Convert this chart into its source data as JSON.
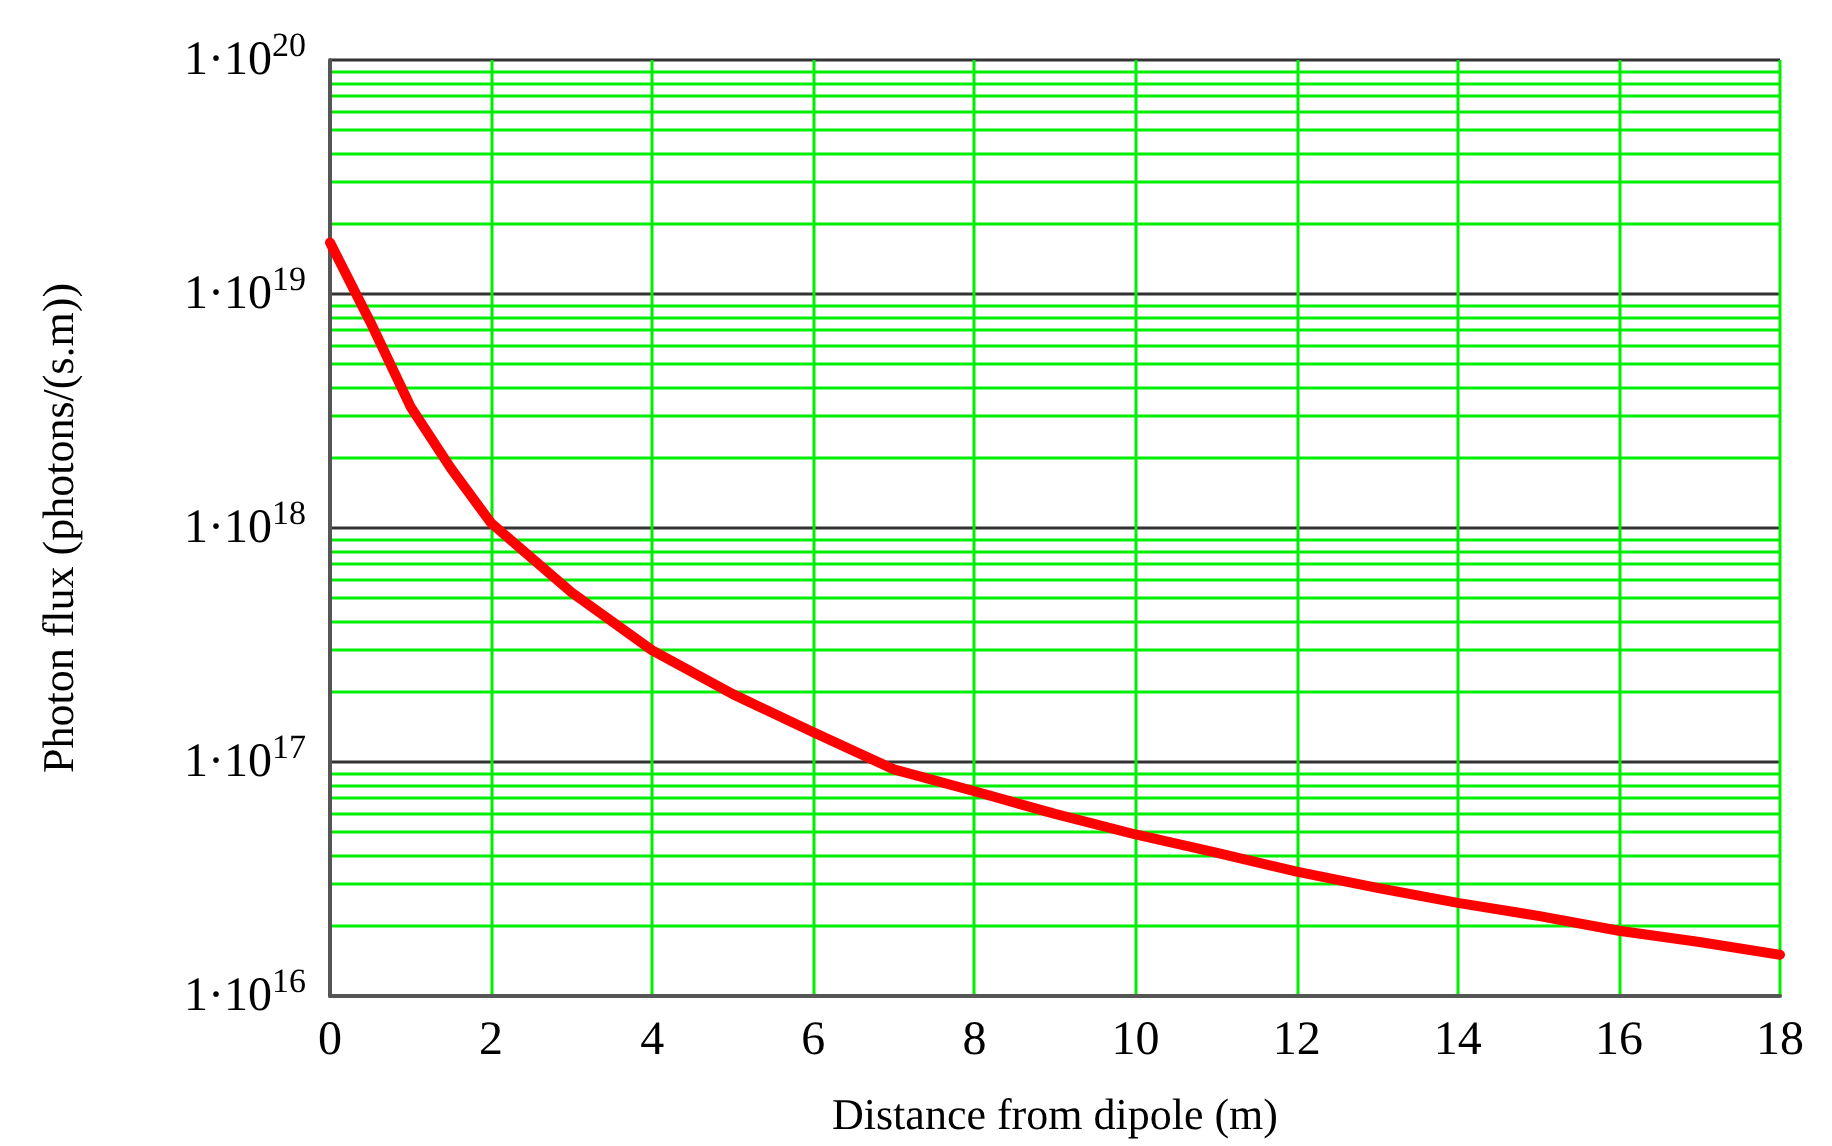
{
  "chart_data": {
    "type": "line",
    "xlabel": "Distance from dipole (m)",
    "ylabel": "Photon flux (photons/(s.m))",
    "x": [
      0,
      0.5,
      1,
      1.5,
      2,
      3,
      4,
      5,
      6,
      7,
      8,
      9,
      10,
      11,
      12,
      13,
      14,
      15,
      16,
      17,
      18
    ],
    "series": [
      {
        "color": "#ff0000",
        "values": [
          1.66e+19,
          7.6e+18,
          3.3e+18,
          1.8e+18,
          1.05e+18,
          5.3e+17,
          3e+17,
          1.95e+17,
          1.34e+17,
          9.3e+16,
          7.5e+16,
          6e+16,
          4.9e+16,
          4.1e+16,
          3.4e+16,
          2.9e+16,
          2.5e+16,
          2.2e+16,
          1.9e+16,
          1.7e+16,
          1.5e+16
        ]
      }
    ],
    "xlim": [
      0,
      18
    ],
    "xticks": [
      0,
      2,
      4,
      6,
      8,
      10,
      12,
      14,
      16,
      18
    ],
    "ylim": [
      1e+16,
      1e+20
    ],
    "yticks": [
      {
        "value": 1e+16,
        "label": "1·10$^{16}$"
      },
      {
        "value": 1e+17,
        "label": "1·10$^{17}$"
      },
      {
        "value": 1e+18,
        "label": "1·10$^{18}$"
      },
      {
        "value": 1e+19,
        "label": "1·10$^{19}$"
      },
      {
        "value": 1e+20,
        "label": "1·10$^{20}$"
      }
    ],
    "log": true,
    "grid": true,
    "marker": "none",
    "line_style": "solid"
  }
}
